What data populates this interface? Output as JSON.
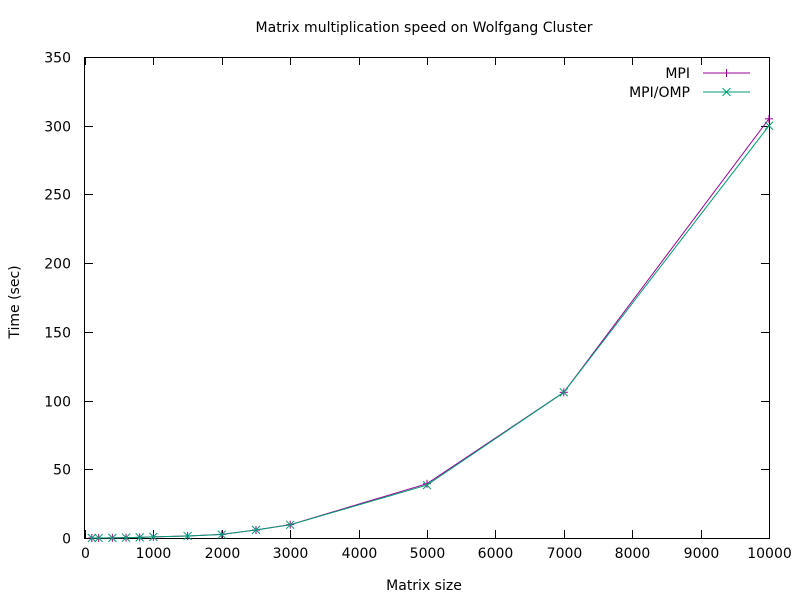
{
  "chart_data": {
    "type": "line",
    "title": "Matrix multiplication speed on Wolfgang Cluster",
    "xlabel": "Matrix size",
    "ylabel": "Time (sec)",
    "xlim": [
      0,
      10000
    ],
    "ylim": [
      0,
      350
    ],
    "xticks": [
      0,
      1000,
      2000,
      3000,
      4000,
      5000,
      6000,
      7000,
      8000,
      9000,
      10000
    ],
    "yticks": [
      0,
      50,
      100,
      150,
      200,
      250,
      300,
      350
    ],
    "grid": false,
    "legend_position": "top-right",
    "x": [
      100,
      200,
      400,
      600,
      800,
      1000,
      1500,
      2000,
      2500,
      3000,
      5000,
      7000,
      10000
    ],
    "series": [
      {
        "name": "MPI",
        "color": "#990099",
        "marker": "plus",
        "values": [
          0.01,
          0.03,
          0.1,
          0.25,
          0.45,
          0.8,
          1.5,
          2.6,
          5.8,
          9.7,
          39.5,
          106,
          305
        ]
      },
      {
        "name": "MPI/OMP",
        "color": "#009E73",
        "marker": "cross",
        "values": [
          0.01,
          0.03,
          0.1,
          0.25,
          0.45,
          0.8,
          1.5,
          2.5,
          5.9,
          9.6,
          38.5,
          106,
          300
        ]
      }
    ]
  }
}
